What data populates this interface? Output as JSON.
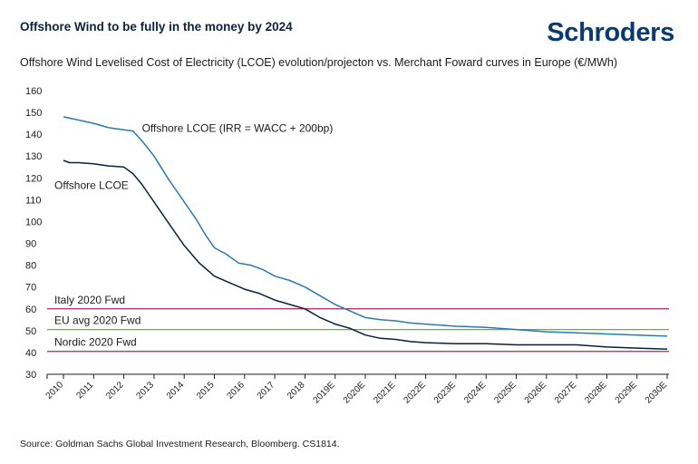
{
  "header": {
    "title": "Offshore Wind to be fully in the money by 2024",
    "brand": "Schroders",
    "subtitle": "Offshore Wind Levelised Cost of Electricity (LCOE) evolution/projecton vs. Merchant Foward curves in Europe (€/MWh)"
  },
  "footer": {
    "source": "Source: Goldman Sachs Global Investment Research, Bloomberg. CS1814."
  },
  "chart_data": {
    "type": "line",
    "title": "Offshore Wind Levelised Cost of Electricity (LCOE) evolution/projecton vs. Merchant Foward curves in Europe (€/MWh)",
    "categories": [
      "2010",
      "2011",
      "2012",
      "2013",
      "2014",
      "2015",
      "2016",
      "2017",
      "2018",
      "2019E",
      "2020E",
      "2021E",
      "2022E",
      "2023E",
      "2024E",
      "2025E",
      "2026E",
      "2027E",
      "2028E",
      "2029E",
      "2030E"
    ],
    "ylim": [
      30,
      160
    ],
    "yticks": [
      30,
      40,
      50,
      60,
      70,
      80,
      90,
      100,
      110,
      120,
      130,
      140,
      150,
      160
    ],
    "grid": false,
    "series": [
      {
        "name": "Offshore LCOE (IRR = WACC + 200bp)",
        "color": "#2a7ab0",
        "x": [
          2010,
          2010.5,
          2011,
          2011.5,
          2012,
          2012.3,
          2012.6,
          2013,
          2013.5,
          2014,
          2014.4,
          2014.7,
          2015,
          2015.4,
          2015.8,
          2016.2,
          2016.6,
          2017,
          2017.5,
          2018,
          2018.5,
          2019,
          2019.5,
          2020,
          2020.5,
          2021,
          2021.5,
          2022,
          2023,
          2024,
          2025,
          2026,
          2027,
          2028,
          2029,
          2030
        ],
        "values": [
          148,
          146.5,
          145,
          143,
          142,
          141.5,
          137,
          130,
          119,
          109,
          101,
          94,
          88,
          85,
          81,
          80,
          78,
          75,
          73,
          70,
          66,
          62,
          59,
          56,
          55,
          54.5,
          53.5,
          53,
          52,
          51.5,
          50.5,
          49.5,
          49,
          48.5,
          48,
          47.5
        ]
      },
      {
        "name": "Offshore LCOE",
        "color": "#0c1f3f",
        "x": [
          2010,
          2010.2,
          2010.5,
          2011,
          2011.5,
          2012,
          2012.3,
          2012.6,
          2013,
          2013.5,
          2014,
          2014.5,
          2015,
          2015.5,
          2016,
          2016.5,
          2017,
          2017.5,
          2018,
          2018.5,
          2019,
          2019.5,
          2020,
          2020.5,
          2021,
          2021.5,
          2022,
          2023,
          2024,
          2025,
          2026,
          2027,
          2028,
          2029,
          2030
        ],
        "values": [
          128,
          127,
          127,
          126.5,
          125.5,
          125,
          122,
          117,
          109,
          99,
          89,
          81,
          75,
          72,
          69,
          67,
          64,
          62,
          60,
          56,
          53,
          51,
          48,
          46.5,
          46,
          45,
          44.5,
          44,
          44,
          43.5,
          43.5,
          43.5,
          42.5,
          42,
          41.5
        ]
      }
    ],
    "reference_lines": [
      {
        "name": "Italy 2020 Fwd",
        "value": 60,
        "color": "#b01f5e"
      },
      {
        "name": "EU avg 2020 Fwd",
        "value": 50.5,
        "color": "#5cb82e"
      },
      {
        "name": "Nordic 2020 Fwd",
        "value": 40.5,
        "color": "#b01f5e"
      }
    ],
    "annotations": [
      {
        "text": "Offshore LCOE (IRR = WACC + 200bp)",
        "x": 2012.6,
        "y": 141
      },
      {
        "text": "Offshore LCOE",
        "x": 2009.7,
        "y": 115
      },
      {
        "text": "Italy 2020 Fwd",
        "x": 2009.7,
        "y": 62.5
      },
      {
        "text": "EU avg 2020 Fwd",
        "x": 2009.7,
        "y": 53
      },
      {
        "text": "Nordic 2020 Fwd",
        "x": 2009.7,
        "y": 43
      }
    ]
  }
}
